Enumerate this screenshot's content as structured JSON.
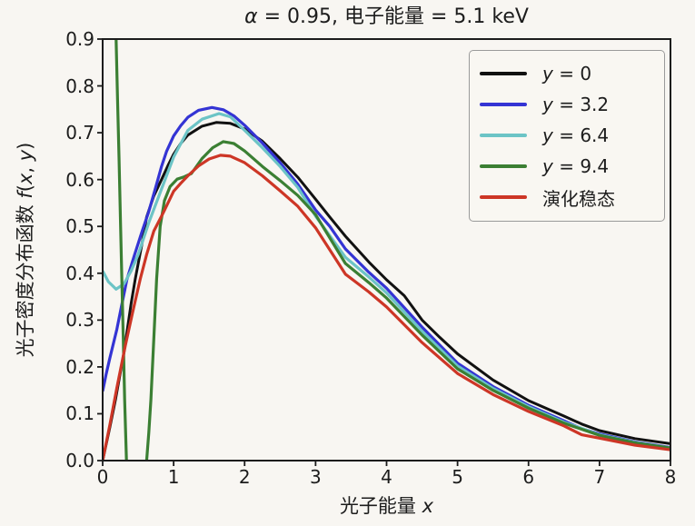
{
  "figure": {
    "title": "α = 0.95, 电子能量 = 5.1 keV"
  },
  "chart_data": {
    "type": "line",
    "title": "α = 0.95, 电子能量 = 5.1 keV",
    "xlabel": "光子能量 x",
    "ylabel": "光子密度分布函数 f(x, y)",
    "xlim": [
      0,
      8
    ],
    "ylim": [
      0,
      0.9
    ],
    "xticks": [
      0,
      1,
      2,
      3,
      4,
      5,
      6,
      7,
      8
    ],
    "xtick_labels": [
      "0",
      "1",
      "2",
      "3",
      "4",
      "5",
      "6",
      "7",
      "8"
    ],
    "yticks": [
      0.0,
      0.1,
      0.2,
      0.3,
      0.4,
      0.5,
      0.6,
      0.7,
      0.8,
      0.9
    ],
    "ytick_labels": [
      "0.0",
      "0.1",
      "0.2",
      "0.3",
      "0.4",
      "0.5",
      "0.6",
      "0.7",
      "0.8",
      "0.9"
    ],
    "grid": false,
    "legend_position": "upper right",
    "axis_color": "#1c1c1c",
    "background_color": "#f8f6f2",
    "series": [
      {
        "name": "y = 0",
        "color": "#111111",
        "line_width": 3.0,
        "points": [
          [
            0,
            0
          ],
          [
            0.1,
            0.07
          ],
          [
            0.18,
            0.13
          ],
          [
            0.3,
            0.23
          ],
          [
            0.4,
            0.335
          ],
          [
            0.46,
            0.388
          ],
          [
            0.55,
            0.46
          ],
          [
            0.62,
            0.52
          ],
          [
            0.72,
            0.565
          ],
          [
            0.83,
            0.6
          ],
          [
            0.92,
            0.63
          ],
          [
            1.0,
            0.654
          ],
          [
            1.1,
            0.677
          ],
          [
            1.2,
            0.695
          ],
          [
            1.4,
            0.714
          ],
          [
            1.6,
            0.722
          ],
          [
            1.8,
            0.72
          ],
          [
            2.0,
            0.708
          ],
          [
            2.25,
            0.682
          ],
          [
            2.5,
            0.645
          ],
          [
            2.75,
            0.605
          ],
          [
            3.0,
            0.558
          ],
          [
            3.2,
            0.52
          ],
          [
            3.42,
            0.479
          ],
          [
            3.75,
            0.424
          ],
          [
            4.0,
            0.386
          ],
          [
            4.25,
            0.352
          ],
          [
            4.5,
            0.3
          ],
          [
            4.75,
            0.263
          ],
          [
            5.0,
            0.228
          ],
          [
            5.5,
            0.172
          ],
          [
            6.0,
            0.128
          ],
          [
            6.5,
            0.095
          ],
          [
            6.75,
            0.078
          ],
          [
            7.0,
            0.064
          ],
          [
            7.5,
            0.047
          ],
          [
            8.0,
            0.036
          ]
        ]
      },
      {
        "name": "y = 3.2",
        "color": "#3434d4",
        "line_width": 3.2,
        "points": [
          [
            0,
            0.148
          ],
          [
            0.05,
            0.185
          ],
          [
            0.1,
            0.218
          ],
          [
            0.2,
            0.28
          ],
          [
            0.34,
            0.386
          ],
          [
            0.45,
            0.44
          ],
          [
            0.55,
            0.487
          ],
          [
            0.65,
            0.532
          ],
          [
            0.75,
            0.585
          ],
          [
            0.83,
            0.628
          ],
          [
            0.9,
            0.66
          ],
          [
            1.0,
            0.693
          ],
          [
            1.1,
            0.715
          ],
          [
            1.2,
            0.733
          ],
          [
            1.35,
            0.748
          ],
          [
            1.54,
            0.754
          ],
          [
            1.7,
            0.749
          ],
          [
            1.85,
            0.736
          ],
          [
            2.0,
            0.716
          ],
          [
            2.25,
            0.678
          ],
          [
            2.5,
            0.636
          ],
          [
            2.75,
            0.59
          ],
          [
            3.0,
            0.535
          ],
          [
            3.2,
            0.5
          ],
          [
            3.42,
            0.452
          ],
          [
            3.75,
            0.402
          ],
          [
            4.0,
            0.368
          ],
          [
            4.5,
            0.285
          ],
          [
            5.0,
            0.208
          ],
          [
            5.5,
            0.158
          ],
          [
            6.0,
            0.118
          ],
          [
            6.5,
            0.085
          ],
          [
            6.75,
            0.068
          ],
          [
            7.0,
            0.057
          ],
          [
            7.5,
            0.04
          ],
          [
            8.0,
            0.028
          ]
        ]
      },
      {
        "name": "y = 6.4",
        "color": "#6cc4c6",
        "line_width": 3.2,
        "points": [
          [
            0,
            0.405
          ],
          [
            0.08,
            0.382
          ],
          [
            0.19,
            0.366
          ],
          [
            0.3,
            0.377
          ],
          [
            0.4,
            0.405
          ],
          [
            0.5,
            0.44
          ],
          [
            0.65,
            0.508
          ],
          [
            0.83,
            0.58
          ],
          [
            1.0,
            0.648
          ],
          [
            1.2,
            0.705
          ],
          [
            1.4,
            0.729
          ],
          [
            1.64,
            0.741
          ],
          [
            1.8,
            0.734
          ],
          [
            2.0,
            0.705
          ],
          [
            2.25,
            0.668
          ],
          [
            2.5,
            0.628
          ],
          [
            2.75,
            0.583
          ],
          [
            3.0,
            0.522
          ],
          [
            3.42,
            0.434
          ],
          [
            3.75,
            0.392
          ],
          [
            4.0,
            0.358
          ],
          [
            4.5,
            0.276
          ],
          [
            5.0,
            0.202
          ],
          [
            5.5,
            0.154
          ],
          [
            6.0,
            0.115
          ],
          [
            6.5,
            0.082
          ],
          [
            7.0,
            0.055
          ],
          [
            7.5,
            0.039
          ],
          [
            8.0,
            0.027
          ]
        ]
      },
      {
        "name": "y = 9.4",
        "color": "#3b7f33",
        "line_width": 3.2,
        "points": [
          [
            0.14,
            1.0
          ],
          [
            0.19,
            0.9
          ],
          [
            0.21,
            0.77
          ],
          [
            0.23,
            0.648
          ],
          [
            0.25,
            0.52
          ],
          [
            0.27,
            0.388
          ],
          [
            0.29,
            0.26
          ],
          [
            0.31,
            0.13
          ],
          [
            0.335,
            0
          ],
          [
            0.4,
            -0.12
          ],
          [
            0.48,
            -0.16
          ],
          [
            0.56,
            -0.08
          ],
          [
            0.62,
            0
          ],
          [
            0.65,
            0.06
          ],
          [
            0.68,
            0.13
          ],
          [
            0.72,
            0.26
          ],
          [
            0.76,
            0.388
          ],
          [
            0.81,
            0.5
          ],
          [
            0.87,
            0.555
          ],
          [
            0.95,
            0.585
          ],
          [
            1.05,
            0.601
          ],
          [
            1.15,
            0.606
          ],
          [
            1.25,
            0.613
          ],
          [
            1.4,
            0.645
          ],
          [
            1.55,
            0.668
          ],
          [
            1.7,
            0.681
          ],
          [
            1.85,
            0.677
          ],
          [
            2.0,
            0.661
          ],
          [
            2.25,
            0.628
          ],
          [
            2.5,
            0.598
          ],
          [
            2.75,
            0.566
          ],
          [
            3.0,
            0.525
          ],
          [
            3.42,
            0.421
          ],
          [
            3.75,
            0.38
          ],
          [
            4.0,
            0.347
          ],
          [
            4.5,
            0.268
          ],
          [
            5.0,
            0.196
          ],
          [
            5.5,
            0.15
          ],
          [
            6.0,
            0.112
          ],
          [
            6.5,
            0.08
          ],
          [
            7.0,
            0.054
          ],
          [
            7.5,
            0.038
          ],
          [
            8.0,
            0.027
          ]
        ]
      },
      {
        "name": "演化稳态",
        "color": "#cd3626",
        "line_width": 3.2,
        "points": [
          [
            0,
            0
          ],
          [
            0.1,
            0.075
          ],
          [
            0.2,
            0.155
          ],
          [
            0.32,
            0.246
          ],
          [
            0.42,
            0.315
          ],
          [
            0.53,
            0.388
          ],
          [
            0.62,
            0.44
          ],
          [
            0.72,
            0.49
          ],
          [
            0.85,
            0.528
          ],
          [
            1.0,
            0.575
          ],
          [
            1.1,
            0.592
          ],
          [
            1.2,
            0.608
          ],
          [
            1.35,
            0.629
          ],
          [
            1.5,
            0.644
          ],
          [
            1.66,
            0.652
          ],
          [
            1.8,
            0.65
          ],
          [
            2.0,
            0.636
          ],
          [
            2.25,
            0.608
          ],
          [
            2.5,
            0.576
          ],
          [
            2.75,
            0.543
          ],
          [
            3.0,
            0.497
          ],
          [
            3.2,
            0.45
          ],
          [
            3.42,
            0.398
          ],
          [
            3.75,
            0.36
          ],
          [
            4.0,
            0.328
          ],
          [
            4.5,
            0.252
          ],
          [
            5.0,
            0.186
          ],
          [
            5.5,
            0.141
          ],
          [
            6.0,
            0.105
          ],
          [
            6.5,
            0.074
          ],
          [
            6.75,
            0.055
          ],
          [
            7.0,
            0.048
          ],
          [
            7.5,
            0.033
          ],
          [
            8.0,
            0.023
          ]
        ]
      }
    ]
  }
}
